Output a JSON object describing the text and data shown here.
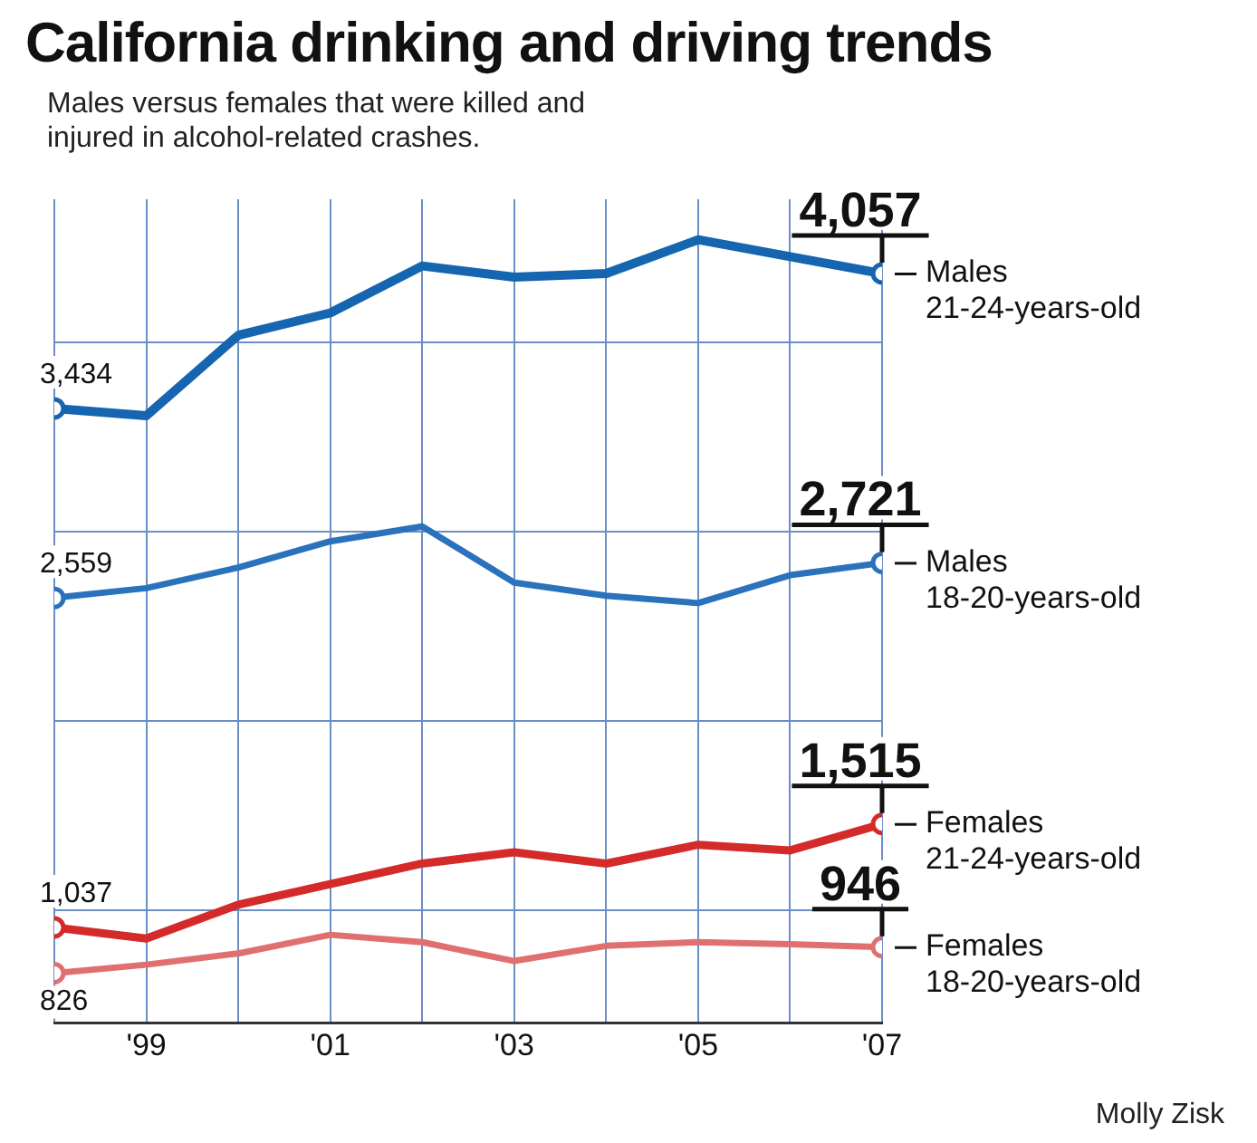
{
  "chart_data": {
    "type": "line",
    "title": "California drinking and driving trends",
    "subtitle": "Males versus females that were killed and injured in alcohol-related crashes.",
    "x": [
      1998,
      1999,
      2000,
      2001,
      2002,
      2003,
      2004,
      2005,
      2006,
      2007
    ],
    "xlim": [
      1998,
      2007
    ],
    "xticks": [
      {
        "value": 1998,
        "label": null
      },
      {
        "value": 1999,
        "label": "'99"
      },
      {
        "value": 2000,
        "label": null
      },
      {
        "value": 2001,
        "label": "'01"
      },
      {
        "value": 2002,
        "label": null
      },
      {
        "value": 2003,
        "label": "'03"
      },
      {
        "value": 2004,
        "label": null
      },
      {
        "value": 2005,
        "label": "'05"
      },
      {
        "value": 2006,
        "label": null
      },
      {
        "value": 2007,
        "label": "'07"
      }
    ],
    "ylim": [
      597,
      4400
    ],
    "yticks": [
      {
        "value": 1116,
        "label": null
      },
      {
        "value": 1991,
        "label": null
      },
      {
        "value": 2866,
        "label": null
      },
      {
        "value": 3741,
        "label": null
      }
    ],
    "tick_labels": "x",
    "grid": true,
    "legend": false,
    "series": [
      {
        "name": "Males 21-24-years-old",
        "color": "#1565b0",
        "values": [
          3434,
          3400,
          3772,
          3875,
          4092,
          4040,
          4057,
          4213,
          4135,
          4057
        ],
        "value_labels": [
          "3,434",
          null,
          null,
          null,
          null,
          null,
          null,
          null,
          null,
          "4,057"
        ]
      },
      {
        "name": "Males 18-20-years-old",
        "color": "#2a72bb",
        "values": [
          2559,
          2604,
          2699,
          2820,
          2889,
          2630,
          2569,
          2535,
          2664,
          2721
        ],
        "value_labels": [
          "2,559",
          null,
          null,
          null,
          null,
          null,
          null,
          null,
          null,
          "2,721"
        ]
      },
      {
        "name": "Females 21-24-years-old",
        "color": "#d42a2a",
        "values": [
          1037,
          986,
          1142,
          1237,
          1332,
          1384,
          1332,
          1419,
          1393,
          1515
        ],
        "value_labels": [
          "1,037",
          null,
          null,
          null,
          null,
          null,
          null,
          null,
          null,
          "1,515"
        ]
      },
      {
        "name": "Females 18-20-years-old",
        "color": "#e07070",
        "values": [
          826,
          865,
          917,
          1003,
          969,
          882,
          952,
          969,
          960,
          946
        ],
        "value_labels": [
          "826",
          null,
          null,
          null,
          null,
          null,
          null,
          null,
          null,
          "946"
        ]
      }
    ],
    "annotations": [
      "Molly Zisk"
    ]
  }
}
